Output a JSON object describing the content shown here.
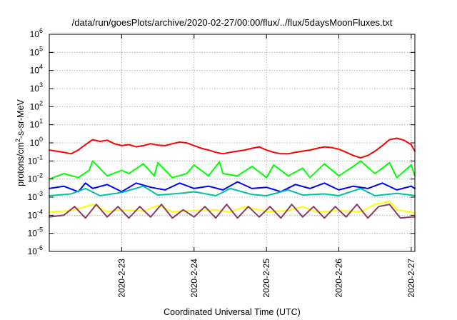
{
  "chart_data": {
    "type": "line",
    "title": "/data/run/goesPlots/archive/2020-02-27/00:00/flux/../flux/5daysMoonFluxes.txt",
    "xlabel": "Coordinated Universal Time (UTC)",
    "ylabel_parts": {
      "base": "protons/cm",
      "sup": "2",
      "rest": "-s-sr-MeV"
    },
    "x_range": [
      22.0,
      27.05
    ],
    "x_ticks": [
      {
        "value": 23,
        "label": "2020-2-23"
      },
      {
        "value": 24,
        "label": "2020-2-24"
      },
      {
        "value": 25,
        "label": "2020-2-25"
      },
      {
        "value": 26,
        "label": "2020-2-26"
      },
      {
        "value": 27,
        "label": "2020-2-27"
      }
    ],
    "y_scale": "log",
    "y_range": [
      1e-06,
      1000000.0
    ],
    "y_ticks": [
      {
        "value": -6,
        "base": "10",
        "exp": "-6"
      },
      {
        "value": -5,
        "base": "10",
        "exp": "-5"
      },
      {
        "value": -4,
        "base": "10",
        "exp": "-4"
      },
      {
        "value": -3,
        "base": "10",
        "exp": "-3"
      },
      {
        "value": -2,
        "base": "10",
        "exp": "-2"
      },
      {
        "value": -1,
        "base": "10",
        "exp": "-1"
      },
      {
        "value": 0,
        "base": "10",
        "exp": "0"
      },
      {
        "value": 1,
        "base": "10",
        "exp": "1"
      },
      {
        "value": 2,
        "base": "10",
        "exp": "2"
      },
      {
        "value": 3,
        "base": "10",
        "exp": "3"
      },
      {
        "value": 4,
        "base": "10",
        "exp": "4"
      },
      {
        "value": 5,
        "base": "10",
        "exp": "5"
      },
      {
        "value": 6,
        "base": "10",
        "exp": "6"
      }
    ],
    "grid": true,
    "series": [
      {
        "color": "#ff0000",
        "width": 2,
        "x": [
          22.0,
          22.1,
          22.2,
          22.3,
          22.4,
          22.5,
          22.6,
          22.7,
          22.8,
          22.9,
          23.0,
          23.1,
          23.2,
          23.3,
          23.4,
          23.5,
          23.6,
          23.7,
          23.8,
          23.9,
          24.0,
          24.1,
          24.2,
          24.3,
          24.4,
          24.5,
          24.6,
          24.7,
          24.8,
          24.9,
          25.0,
          25.1,
          25.2,
          25.3,
          25.4,
          25.5,
          25.6,
          25.7,
          25.8,
          25.9,
          26.0,
          26.1,
          26.2,
          26.3,
          26.4,
          26.5,
          26.6,
          26.7,
          26.8,
          26.9,
          27.0,
          27.05
        ],
        "y": [
          0.4,
          0.35,
          0.3,
          0.25,
          0.4,
          0.8,
          1.5,
          1.2,
          1.4,
          0.9,
          0.7,
          0.8,
          0.6,
          0.7,
          0.9,
          0.75,
          0.7,
          0.9,
          1.1,
          1.0,
          0.7,
          0.5,
          0.4,
          0.3,
          0.25,
          0.3,
          0.35,
          0.4,
          0.5,
          0.6,
          0.4,
          0.3,
          0.25,
          0.25,
          0.3,
          0.35,
          0.4,
          0.5,
          0.6,
          0.55,
          0.45,
          0.3,
          0.2,
          0.15,
          0.2,
          0.35,
          0.7,
          1.5,
          1.8,
          1.4,
          0.8,
          0.35
        ]
      },
      {
        "color": "#00ff00",
        "width": 2,
        "x": [
          22.0,
          22.2,
          22.4,
          22.55,
          22.6,
          22.8,
          23.0,
          23.1,
          23.3,
          23.45,
          23.5,
          23.7,
          23.9,
          24.0,
          24.2,
          24.35,
          24.4,
          24.6,
          24.8,
          25.0,
          25.1,
          25.3,
          25.5,
          25.6,
          25.8,
          26.0,
          26.2,
          26.3,
          26.5,
          26.7,
          26.8,
          27.0,
          27.05
        ],
        "y": [
          0.01,
          0.02,
          0.012,
          0.03,
          0.1,
          0.015,
          0.03,
          0.02,
          0.07,
          0.015,
          0.08,
          0.012,
          0.02,
          0.06,
          0.015,
          0.09,
          0.02,
          0.015,
          0.05,
          0.012,
          0.06,
          0.015,
          0.04,
          0.012,
          0.07,
          0.015,
          0.05,
          0.1,
          0.02,
          0.08,
          0.012,
          0.06,
          0.015
        ]
      },
      {
        "color": "#0000ff",
        "width": 2,
        "x": [
          22.0,
          22.2,
          22.4,
          22.5,
          22.6,
          22.8,
          23.0,
          23.2,
          23.4,
          23.6,
          23.8,
          24.0,
          24.2,
          24.4,
          24.6,
          24.8,
          25.0,
          25.2,
          25.4,
          25.6,
          25.8,
          26.0,
          26.2,
          26.4,
          26.6,
          26.8,
          27.0,
          27.05
        ],
        "y": [
          0.003,
          0.004,
          0.002,
          0.006,
          0.003,
          0.005,
          0.002,
          0.006,
          0.0035,
          0.0025,
          0.006,
          0.003,
          0.004,
          0.0025,
          0.007,
          0.003,
          0.0035,
          0.002,
          0.005,
          0.003,
          0.006,
          0.0025,
          0.004,
          0.003,
          0.006,
          0.0025,
          0.004,
          0.003
        ]
      },
      {
        "color": "#00c0a0",
        "width": 2,
        "x": [
          22.0,
          22.3,
          22.5,
          22.7,
          23.0,
          23.3,
          23.5,
          23.8,
          24.0,
          24.3,
          24.5,
          24.8,
          25.0,
          25.3,
          25.5,
          25.8,
          26.0,
          26.3,
          26.5,
          26.8,
          27.0,
          27.05
        ],
        "y": [
          0.0012,
          0.0015,
          0.003,
          0.0012,
          0.0018,
          0.004,
          0.0013,
          0.0016,
          0.002,
          0.0012,
          0.003,
          0.0014,
          0.0012,
          0.0025,
          0.0013,
          0.0015,
          0.0012,
          0.003,
          0.0012,
          0.0016,
          0.0013,
          0.0012
        ]
      },
      {
        "color": "#ffff00",
        "width": 2,
        "x": [
          22.0,
          22.3,
          22.5,
          22.6,
          22.8,
          23.0,
          23.3,
          23.5,
          23.7,
          24.0,
          24.3,
          24.5,
          24.7,
          25.0,
          25.3,
          25.5,
          25.7,
          26.0,
          26.3,
          26.5,
          26.7,
          26.8,
          27.0,
          27.05
        ],
        "y": [
          0.00015,
          0.00018,
          0.0003,
          0.0004,
          0.00016,
          0.0002,
          0.00017,
          0.00035,
          0.00016,
          0.00018,
          0.0002,
          0.00015,
          0.0003,
          0.00016,
          0.00018,
          0.0003,
          0.00015,
          0.00018,
          0.00016,
          0.0004,
          0.0006,
          0.0002,
          0.00015,
          0.00012
        ]
      },
      {
        "color": "#8b3a62",
        "width": 2,
        "x": [
          22.0,
          22.2,
          22.35,
          22.5,
          22.65,
          22.8,
          22.95,
          23.1,
          23.25,
          23.4,
          23.55,
          23.7,
          23.85,
          24.0,
          24.15,
          24.3,
          24.45,
          24.6,
          24.75,
          24.9,
          25.05,
          25.2,
          25.35,
          25.5,
          25.65,
          25.8,
          25.95,
          26.1,
          26.25,
          26.4,
          26.55,
          26.7,
          26.85,
          27.0,
          27.05
        ],
        "y": [
          8e-05,
          0.0001,
          0.0003,
          7e-05,
          0.0004,
          8e-05,
          0.0003,
          7e-05,
          0.0003,
          8e-05,
          0.0004,
          7e-05,
          0.0002,
          8e-05,
          0.0003,
          7e-05,
          0.0004,
          7e-05,
          0.0003,
          8e-05,
          0.0003,
          7e-05,
          0.0004,
          8e-05,
          0.0003,
          7e-05,
          0.0003,
          8e-05,
          0.0004,
          7e-05,
          0.0003,
          0.0004,
          7e-05,
          8e-05,
          8e-05
        ]
      }
    ]
  }
}
